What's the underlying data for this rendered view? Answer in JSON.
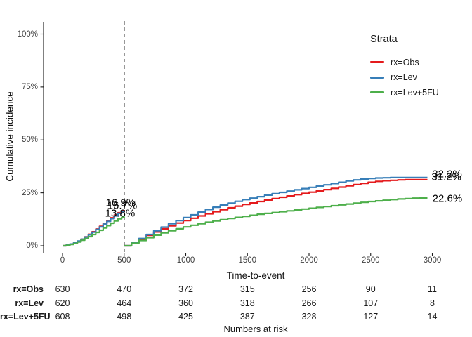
{
  "colors": {
    "obs": "#E41A1C",
    "lev": "#377EB8",
    "lev5fu": "#4DAF4A",
    "axis": "#1a1a1a",
    "reference_line": "#1a1a1a"
  },
  "figure": {
    "y_axis": {
      "title": "Cumulative incidence",
      "ticks": [
        {
          "label": "0%",
          "value": 0
        },
        {
          "label": "25%",
          "value": 25
        },
        {
          "label": "50%",
          "value": 50
        },
        {
          "label": "75%",
          "value": 75
        },
        {
          "label": "100%",
          "value": 100
        }
      ]
    },
    "x_axis": {
      "title": "Time-to-event",
      "ticks": [
        {
          "label": "0",
          "value": 0
        },
        {
          "label": "500",
          "value": 500
        },
        {
          "label": "1000",
          "value": 1000
        },
        {
          "label": "1500",
          "value": 1500
        },
        {
          "label": "2000",
          "value": 2000
        },
        {
          "label": "2500",
          "value": 2500
        },
        {
          "label": "3000",
          "value": 3000
        }
      ]
    },
    "legend": {
      "title": "Strata",
      "entries": [
        {
          "label": "rx=Obs",
          "color": "#E41A1C"
        },
        {
          "label": "rx=Lev",
          "color": "#377EB8"
        },
        {
          "label": "rx=Lev+5FU",
          "color": "#4DAF4A"
        }
      ]
    }
  },
  "chart_data": {
    "type": "line",
    "subtype": "step-cumulative-incidence-landmark",
    "xlabel": "Time-to-event",
    "ylabel": "Cumulative incidence",
    "xlim": [
      0,
      3290
    ],
    "ylim_pct": [
      0,
      100
    ],
    "grid": false,
    "legend_position": "top-right",
    "reference_line_x": 500,
    "annotations": [
      {
        "text": "16.9%",
        "t": 472,
        "pct": 20.2
      },
      {
        "text": "16.7%",
        "t": 484,
        "pct": 19.0
      },
      {
        "text": "13.8%",
        "t": 467,
        "pct": 15.3
      },
      {
        "text": "32.2%",
        "t": 3120,
        "pct": 33.8
      },
      {
        "text": "31.2%",
        "t": 3115,
        "pct": 32.5
      },
      {
        "text": "22.6%",
        "t": 3122,
        "pct": 22.2
      }
    ],
    "series": [
      {
        "name": "rx=Obs",
        "color": "#E41A1C",
        "segments": [
          [
            [
              0,
              0
            ],
            [
              30,
              0.3
            ],
            [
              60,
              0.7
            ],
            [
              90,
              1.3
            ],
            [
              120,
              2.1
            ],
            [
              150,
              3.1
            ],
            [
              180,
              4.2
            ],
            [
              210,
              5.4
            ],
            [
              240,
              6.6
            ],
            [
              270,
              7.9
            ],
            [
              300,
              9.2
            ],
            [
              330,
              10.5
            ],
            [
              360,
              11.9
            ],
            [
              390,
              13.2
            ],
            [
              420,
              14.5
            ],
            [
              450,
              15.6
            ],
            [
              480,
              16.5
            ],
            [
              500,
              16.9
            ]
          ],
          [
            [
              500,
              0
            ],
            [
              560,
              1.5
            ],
            [
              620,
              3.2
            ],
            [
              680,
              4.9
            ],
            [
              740,
              6.5
            ],
            [
              800,
              8.0
            ],
            [
              860,
              9.4
            ],
            [
              920,
              10.7
            ],
            [
              980,
              11.9
            ],
            [
              1040,
              13.0
            ],
            [
              1100,
              14.1
            ],
            [
              1160,
              15.1
            ],
            [
              1220,
              16.1
            ],
            [
              1280,
              17.0
            ],
            [
              1340,
              17.9
            ],
            [
              1400,
              18.7
            ],
            [
              1460,
              19.5
            ],
            [
              1520,
              20.2
            ],
            [
              1580,
              20.9
            ],
            [
              1640,
              21.6
            ],
            [
              1700,
              22.3
            ],
            [
              1760,
              22.9
            ],
            [
              1820,
              23.5
            ],
            [
              1880,
              24.1
            ],
            [
              1940,
              24.7
            ],
            [
              2000,
              25.3
            ],
            [
              2060,
              25.9
            ],
            [
              2120,
              26.5
            ],
            [
              2180,
              27.1
            ],
            [
              2240,
              27.7
            ],
            [
              2300,
              28.3
            ],
            [
              2360,
              28.9
            ],
            [
              2420,
              29.5
            ],
            [
              2480,
              30.0
            ],
            [
              2540,
              30.4
            ],
            [
              2600,
              30.7
            ],
            [
              2660,
              30.9
            ],
            [
              2720,
              31.1
            ],
            [
              2780,
              31.2
            ],
            [
              2840,
              31.2
            ],
            [
              2900,
              31.2
            ],
            [
              2960,
              31.2
            ]
          ]
        ]
      },
      {
        "name": "rx=Lev",
        "color": "#377EB8",
        "segments": [
          [
            [
              0,
              0
            ],
            [
              30,
              0.3
            ],
            [
              60,
              0.8
            ],
            [
              90,
              1.4
            ],
            [
              120,
              2.2
            ],
            [
              150,
              3.1
            ],
            [
              180,
              4.1
            ],
            [
              210,
              5.2
            ],
            [
              240,
              6.4
            ],
            [
              270,
              7.7
            ],
            [
              300,
              8.9
            ],
            [
              330,
              10.2
            ],
            [
              360,
              11.5
            ],
            [
              390,
              12.8
            ],
            [
              420,
              14.1
            ],
            [
              450,
              15.3
            ],
            [
              480,
              16.2
            ],
            [
              500,
              16.7
            ]
          ],
          [
            [
              500,
              0
            ],
            [
              560,
              1.6
            ],
            [
              620,
              3.4
            ],
            [
              680,
              5.3
            ],
            [
              740,
              7.1
            ],
            [
              800,
              8.8
            ],
            [
              860,
              10.4
            ],
            [
              920,
              11.9
            ],
            [
              980,
              13.3
            ],
            [
              1040,
              14.6
            ],
            [
              1100,
              15.9
            ],
            [
              1160,
              17.1
            ],
            [
              1220,
              18.2
            ],
            [
              1280,
              19.2
            ],
            [
              1340,
              20.1
            ],
            [
              1400,
              21.0
            ],
            [
              1460,
              21.8
            ],
            [
              1520,
              22.5
            ],
            [
              1580,
              23.2
            ],
            [
              1640,
              23.9
            ],
            [
              1700,
              24.6
            ],
            [
              1760,
              25.2
            ],
            [
              1820,
              25.8
            ],
            [
              1880,
              26.4
            ],
            [
              1940,
              27.0
            ],
            [
              2000,
              27.6
            ],
            [
              2060,
              28.2
            ],
            [
              2120,
              28.8
            ],
            [
              2180,
              29.4
            ],
            [
              2240,
              30.0
            ],
            [
              2300,
              30.6
            ],
            [
              2360,
              31.1
            ],
            [
              2420,
              31.5
            ],
            [
              2480,
              31.8
            ],
            [
              2540,
              32.0
            ],
            [
              2600,
              32.1
            ],
            [
              2660,
              32.2
            ],
            [
              2720,
              32.2
            ],
            [
              2780,
              32.2
            ],
            [
              2840,
              32.2
            ],
            [
              2900,
              32.2
            ],
            [
              2960,
              32.2
            ]
          ]
        ]
      },
      {
        "name": "rx=Lev+5FU",
        "color": "#4DAF4A",
        "segments": [
          [
            [
              0,
              0
            ],
            [
              30,
              0.2
            ],
            [
              60,
              0.6
            ],
            [
              90,
              1.1
            ],
            [
              120,
              1.8
            ],
            [
              150,
              2.6
            ],
            [
              180,
              3.4
            ],
            [
              210,
              4.3
            ],
            [
              240,
              5.3
            ],
            [
              270,
              6.3
            ],
            [
              300,
              7.3
            ],
            [
              330,
              8.4
            ],
            [
              360,
              9.5
            ],
            [
              390,
              10.6
            ],
            [
              420,
              11.7
            ],
            [
              450,
              12.7
            ],
            [
              480,
              13.4
            ],
            [
              500,
              13.8
            ]
          ],
          [
            [
              500,
              0
            ],
            [
              560,
              1.2
            ],
            [
              620,
              2.5
            ],
            [
              680,
              3.8
            ],
            [
              740,
              5.0
            ],
            [
              800,
              6.1
            ],
            [
              860,
              7.1
            ],
            [
              920,
              8.0
            ],
            [
              980,
              8.9
            ],
            [
              1040,
              9.7
            ],
            [
              1100,
              10.4
            ],
            [
              1160,
              11.1
            ],
            [
              1220,
              11.7
            ],
            [
              1280,
              12.3
            ],
            [
              1340,
              12.9
            ],
            [
              1400,
              13.4
            ],
            [
              1460,
              13.9
            ],
            [
              1520,
              14.4
            ],
            [
              1580,
              14.9
            ],
            [
              1640,
              15.3
            ],
            [
              1700,
              15.7
            ],
            [
              1760,
              16.1
            ],
            [
              1820,
              16.5
            ],
            [
              1880,
              16.9
            ],
            [
              1940,
              17.3
            ],
            [
              2000,
              17.7
            ],
            [
              2060,
              18.1
            ],
            [
              2120,
              18.5
            ],
            [
              2180,
              18.9
            ],
            [
              2240,
              19.3
            ],
            [
              2300,
              19.7
            ],
            [
              2360,
              20.1
            ],
            [
              2420,
              20.5
            ],
            [
              2480,
              20.9
            ],
            [
              2540,
              21.2
            ],
            [
              2600,
              21.5
            ],
            [
              2660,
              21.8
            ],
            [
              2720,
              22.1
            ],
            [
              2780,
              22.3
            ],
            [
              2840,
              22.5
            ],
            [
              2900,
              22.6
            ],
            [
              2960,
              22.6
            ]
          ]
        ]
      }
    ]
  },
  "risk_table": {
    "caption": "Numbers at risk",
    "times": [
      0,
      500,
      1000,
      1500,
      2000,
      2500,
      3000
    ],
    "rows": [
      {
        "label": "rx=Obs",
        "values": [
          "630",
          "470",
          "372",
          "315",
          "256",
          "90",
          "11"
        ]
      },
      {
        "label": "rx=Lev",
        "values": [
          "620",
          "464",
          "360",
          "318",
          "266",
          "107",
          "8"
        ]
      },
      {
        "label": "rx=Lev+5FU",
        "values": [
          "608",
          "498",
          "425",
          "387",
          "328",
          "127",
          "14"
        ]
      }
    ]
  }
}
